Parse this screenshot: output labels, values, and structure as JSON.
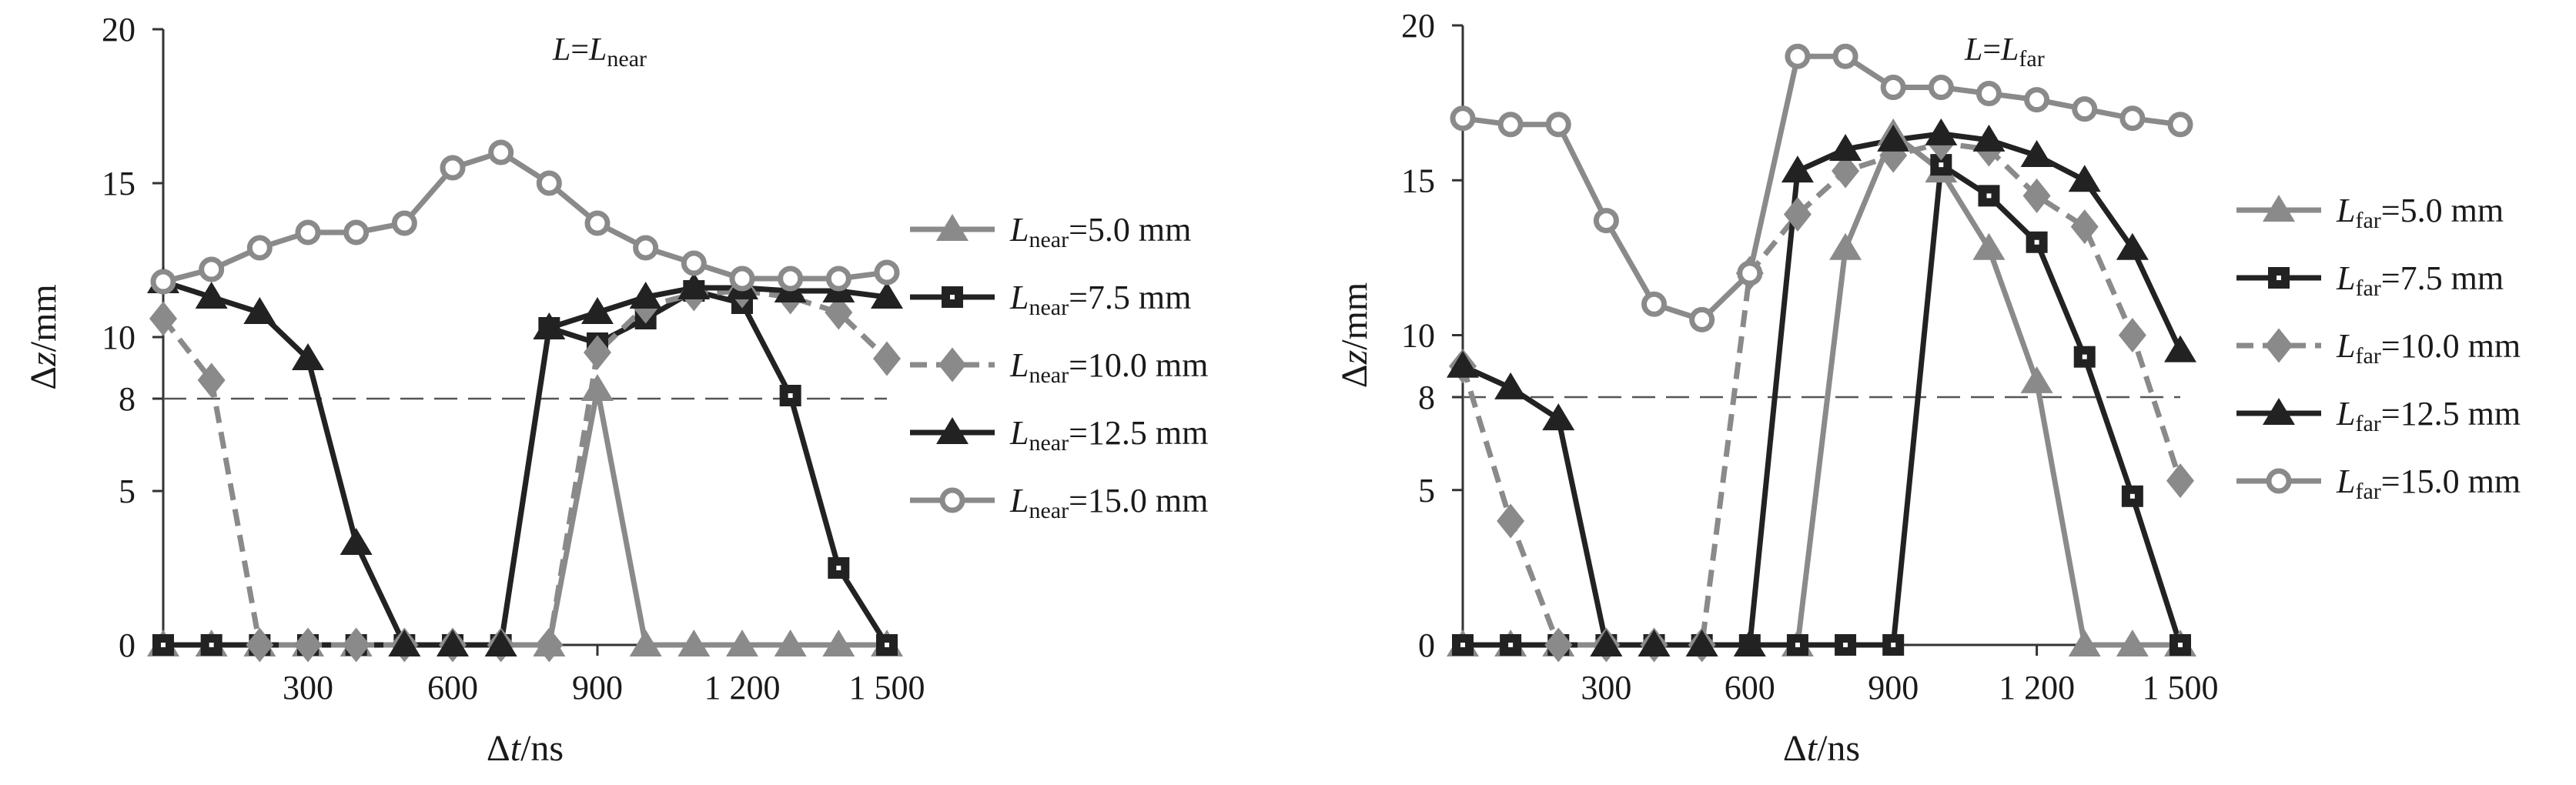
{
  "chart_data": [
    {
      "type": "line",
      "title": {
        "main": "L",
        "eq": "=",
        "var": "L",
        "sub": "near"
      },
      "xlabel": {
        "pre": "Δ",
        "var": "t",
        "post": "/ns"
      },
      "ylabel": {
        "pre": "Δ",
        "var": "z",
        "post": "/mm"
      },
      "xlim": [
        0,
        1500
      ],
      "ylim": [
        0,
        20
      ],
      "xticks": [
        300,
        600,
        900,
        1200,
        1500
      ],
      "xtick_labels": [
        "300",
        "600",
        "900",
        "1 200",
        "1 500"
      ],
      "yticks": [
        0,
        5,
        8,
        10,
        15,
        20
      ],
      "ytick_labels": [
        "0",
        "5",
        "8",
        "10",
        "15",
        "20"
      ],
      "threshold": 8,
      "grid": false,
      "legend_position": "right",
      "x": [
        0,
        100,
        200,
        300,
        400,
        500,
        600,
        700,
        800,
        900,
        1000,
        1100,
        1200,
        1300,
        1400,
        1500
      ],
      "series": [
        {
          "var": "L",
          "sub": "near",
          "rest": "=5.0 mm",
          "marker": "triangle",
          "color": "#8a8a8a",
          "dash": false,
          "values": [
            0,
            0,
            0,
            0,
            0,
            0,
            0,
            0,
            0,
            8.3,
            0,
            0,
            0,
            0,
            0,
            0
          ]
        },
        {
          "var": "L",
          "sub": "near",
          "rest": "=7.5 mm",
          "marker": "square",
          "color": "#222222",
          "dash": false,
          "values": [
            0,
            0,
            0,
            0,
            0,
            0,
            0,
            0,
            10.3,
            9.8,
            10.6,
            11.5,
            11.1,
            8.1,
            2.5,
            0
          ]
        },
        {
          "var": "L",
          "sub": "near",
          "rest": "=10.0 mm",
          "marker": "diamond",
          "color": "#8a8a8a",
          "dash": true,
          "values": [
            10.6,
            8.6,
            0,
            0,
            0,
            0,
            0,
            0,
            0,
            9.5,
            11.0,
            11.4,
            11.5,
            11.3,
            10.8,
            9.3
          ]
        },
        {
          "var": "L",
          "sub": "near",
          "rest": "=12.5 mm",
          "marker": "triangle",
          "color": "#222222",
          "dash": false,
          "values": [
            11.8,
            11.3,
            10.8,
            9.3,
            3.3,
            0,
            0,
            0,
            10.3,
            10.8,
            11.3,
            11.6,
            11.6,
            11.5,
            11.5,
            11.3
          ]
        },
        {
          "var": "L",
          "sub": "near",
          "rest": "=15.0 mm",
          "marker": "circle",
          "color": "#8a8a8a",
          "dash": false,
          "values": [
            11.8,
            12.2,
            12.9,
            13.4,
            13.4,
            13.7,
            15.5,
            16.0,
            15.0,
            13.7,
            12.9,
            12.4,
            11.9,
            11.9,
            11.9,
            12.1
          ]
        }
      ]
    },
    {
      "type": "line",
      "title": {
        "main": "L",
        "eq": "=",
        "var": "L",
        "sub": "far"
      },
      "xlabel": {
        "pre": "Δ",
        "var": "t",
        "post": "/ns"
      },
      "ylabel": {
        "pre": "Δ",
        "var": "z",
        "post": "/mm"
      },
      "xlim": [
        0,
        1500
      ],
      "ylim": [
        0,
        20
      ],
      "xticks": [
        300,
        600,
        900,
        1200,
        1500
      ],
      "xtick_labels": [
        "300",
        "600",
        "900",
        "1 200",
        "1 500"
      ],
      "yticks": [
        0,
        5,
        8,
        10,
        15,
        20
      ],
      "ytick_labels": [
        "0",
        "5",
        "8",
        "10",
        "15",
        "20"
      ],
      "threshold": 8,
      "grid": false,
      "legend_position": "right",
      "x": [
        0,
        100,
        200,
        300,
        400,
        500,
        600,
        700,
        800,
        900,
        1000,
        1100,
        1200,
        1300,
        1400,
        1500
      ],
      "series": [
        {
          "var": "L",
          "sub": "far",
          "rest": "=5.0 mm",
          "marker": "triangle",
          "color": "#8a8a8a",
          "dash": false,
          "values": [
            0,
            0,
            0,
            0,
            0,
            0,
            0,
            0,
            12.8,
            16.5,
            15.3,
            12.8,
            8.5,
            0,
            0,
            0
          ]
        },
        {
          "var": "L",
          "sub": "far",
          "rest": "=7.5 mm",
          "marker": "square",
          "color": "#222222",
          "dash": false,
          "values": [
            0,
            0,
            0,
            0,
            0,
            0,
            0,
            0,
            0,
            0,
            15.5,
            14.5,
            13.0,
            9.3,
            4.8,
            0
          ]
        },
        {
          "var": "L",
          "sub": "far",
          "rest": "=10.0 mm",
          "marker": "diamond",
          "color": "#8a8a8a",
          "dash": true,
          "values": [
            9.0,
            4.0,
            0,
            0,
            0,
            0,
            12.0,
            13.9,
            15.3,
            15.8,
            16.2,
            16.0,
            14.5,
            13.5,
            10.0,
            5.3
          ]
        },
        {
          "var": "L",
          "sub": "far",
          "rest": "=12.5 mm",
          "marker": "triangle",
          "color": "#222222",
          "dash": false,
          "values": [
            9.0,
            8.3,
            7.3,
            0,
            0,
            0,
            0,
            15.3,
            16.0,
            16.3,
            16.5,
            16.3,
            15.8,
            15.0,
            12.8,
            9.5
          ]
        },
        {
          "var": "L",
          "sub": "far",
          "rest": "=15.0 mm",
          "marker": "circle",
          "color": "#8a8a8a",
          "dash": false,
          "values": [
            17.0,
            16.8,
            16.8,
            13.7,
            11.0,
            10.5,
            12.0,
            19.0,
            19.0,
            18.0,
            18.0,
            17.8,
            17.6,
            17.3,
            17.0,
            16.8
          ]
        }
      ]
    }
  ]
}
